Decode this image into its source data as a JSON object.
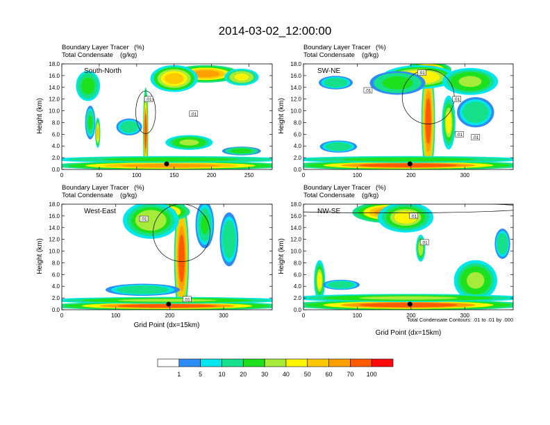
{
  "figure": {
    "title": "2014-03-02_12:00:00",
    "contour_note": "Total Condensate Contours: .01 to .01 by .000"
  },
  "colorbar": {
    "colors": [
      "#ffffff",
      "#2f8cf4",
      "#00e6ee",
      "#17e08b",
      "#1ee11e",
      "#a6ea3a",
      "#fff400",
      "#ffc800",
      "#ffa000",
      "#ff5a00",
      "#ff0a0a"
    ],
    "ticks": [
      "1",
      "5",
      "10",
      "20",
      "30",
      "40",
      "50",
      "60",
      "70",
      "100"
    ]
  },
  "chart_data": [
    {
      "type": "heatmap",
      "direction": "South-North",
      "subtitle_left": [
        "Boundary Layer Tracer",
        "Total Condensate"
      ],
      "subtitle_units": [
        "(%)",
        "(g/kg)"
      ],
      "ylabel": "Height (km)",
      "xlabel": "",
      "xlim": [
        0,
        281
      ],
      "ylim": [
        0,
        18
      ],
      "xticks": [
        0,
        50,
        100,
        150,
        200,
        250
      ],
      "yticks": [
        "0.0",
        "2.0",
        "4.0",
        "6.0",
        "8.0",
        "10.0",
        "12.0",
        "14.0",
        "16.0",
        "18.0"
      ],
      "marker_x": 140,
      "contour_labels": [
        {
          "x": 116,
          "y": 12.0,
          "text": ".01"
        },
        {
          "x": 176,
          "y": 9.5,
          "text": ".01"
        }
      ],
      "plumes": [
        {
          "x": 112,
          "y": 0,
          "w": 6,
          "h": 13,
          "v": 72
        },
        {
          "x": 192,
          "y": 15.0,
          "w": 80,
          "h": 2.6,
          "v": 66
        },
        {
          "x": 150,
          "y": 13.5,
          "w": 55,
          "h": 4.0,
          "v": 55
        },
        {
          "x": 240,
          "y": 14.5,
          "w": 40,
          "h": 2.5,
          "v": 45
        },
        {
          "x": 35,
          "y": 12.0,
          "w": 28,
          "h": 4.5,
          "v": 28
        },
        {
          "x": 48,
          "y": 4.0,
          "w": 6,
          "h": 4.5,
          "v": 55
        },
        {
          "x": 38,
          "y": 5.5,
          "w": 12,
          "h": 5.0,
          "v": 22
        },
        {
          "x": 90,
          "y": 6.0,
          "w": 30,
          "h": 2.5,
          "v": 18
        },
        {
          "x": 170,
          "y": 3.5,
          "w": 55,
          "h": 2.2,
          "v": 30
        },
        {
          "x": 240,
          "y": 2.5,
          "w": 45,
          "h": 1.3,
          "v": 25
        },
        {
          "x": 145,
          "y": 0.0,
          "w": 280,
          "h": 1.3,
          "v": 68
        },
        {
          "x": 145,
          "y": 1.2,
          "w": 280,
          "h": 1.0,
          "v": 28
        }
      ]
    },
    {
      "type": "heatmap",
      "direction": "SW-NE",
      "subtitle_left": [
        "Boundary Layer Tracer",
        "Total Condensate"
      ],
      "subtitle_units": [
        "(%)",
        "(g/kg)"
      ],
      "ylabel": "Height (km)",
      "xlabel": "",
      "xlim": [
        0,
        390
      ],
      "ylim": [
        0,
        18
      ],
      "xticks": [
        0,
        100,
        200,
        300
      ],
      "yticks": [
        "0.0",
        "2.0",
        "4.0",
        "6.0",
        "8.0",
        "10.0",
        "12.0",
        "14.0",
        "16.0",
        "18.0"
      ],
      "marker_x": 198,
      "contour_labels": [
        {
          "x": 285,
          "y": 12.0,
          "text": ".01"
        },
        {
          "x": 290,
          "y": 6.0,
          "text": ".01"
        },
        {
          "x": 320,
          "y": 5.5,
          "text": ".01"
        },
        {
          "x": 220,
          "y": 16.5,
          "text": ".01"
        },
        {
          "x": 120,
          "y": 13.5,
          "text": ".01"
        }
      ],
      "plumes": [
        {
          "x": 232,
          "y": 0,
          "w": 22,
          "h": 16.5,
          "v": 78
        },
        {
          "x": 232,
          "y": 15.8,
          "w": 75,
          "h": 2.4,
          "v": 72
        },
        {
          "x": 215,
          "y": 14.0,
          "w": 120,
          "h": 3.5,
          "v": 48
        },
        {
          "x": 310,
          "y": 13.0,
          "w": 90,
          "h": 4.0,
          "v": 34
        },
        {
          "x": 175,
          "y": 13.0,
          "w": 90,
          "h": 3.5,
          "v": 25
        },
        {
          "x": 60,
          "y": 13.8,
          "w": 55,
          "h": 2.0,
          "v": 16
        },
        {
          "x": 320,
          "y": 7.5,
          "w": 60,
          "h": 4.5,
          "v": 16
        },
        {
          "x": 270,
          "y": 4.0,
          "w": 22,
          "h": 8.0,
          "v": 40
        },
        {
          "x": 65,
          "y": 3.0,
          "w": 60,
          "h": 1.8,
          "v": 16
        },
        {
          "x": 195,
          "y": 0.0,
          "w": 390,
          "h": 1.4,
          "v": 70
        },
        {
          "x": 195,
          "y": 1.2,
          "w": 390,
          "h": 1.0,
          "v": 28
        }
      ]
    },
    {
      "type": "heatmap",
      "direction": "West-East",
      "subtitle_left": [
        "Boundary Layer Tracer",
        "Total Condensate"
      ],
      "subtitle_units": [
        "(%)",
        "(g/kg)"
      ],
      "ylabel": "Height (km)",
      "xlabel": "Grid Point (dx=15km)",
      "xlim": [
        0,
        390
      ],
      "ylim": [
        0,
        18
      ],
      "xticks": [
        0,
        100,
        200,
        300
      ],
      "yticks": [
        "0.0",
        "2.0",
        "4.0",
        "6.0",
        "8.0",
        "10.0",
        "12.0",
        "14.0",
        "16.0",
        "18.0"
      ],
      "marker_x": 198,
      "contour_labels": [
        {
          "x": 152,
          "y": 15.5,
          "text": ".01"
        },
        {
          "x": 232,
          "y": 1.8,
          "text": ".01"
        }
      ],
      "plumes": [
        {
          "x": 222,
          "y": 0,
          "w": 24,
          "h": 17.5,
          "v": 80
        },
        {
          "x": 180,
          "y": 15.2,
          "w": 100,
          "h": 3.0,
          "v": 62
        },
        {
          "x": 165,
          "y": 12.5,
          "w": 90,
          "h": 5.5,
          "v": 38
        },
        {
          "x": 265,
          "y": 11.0,
          "w": 30,
          "h": 7.0,
          "v": 22
        },
        {
          "x": 310,
          "y": 8.0,
          "w": 30,
          "h": 8.0,
          "v": 18
        },
        {
          "x": 150,
          "y": 2.5,
          "w": 120,
          "h": 1.8,
          "v": 16
        },
        {
          "x": 195,
          "y": 0.0,
          "w": 390,
          "h": 1.3,
          "v": 70
        },
        {
          "x": 195,
          "y": 1.1,
          "w": 390,
          "h": 1.0,
          "v": 30
        }
      ]
    },
    {
      "type": "heatmap",
      "direction": "NW-SE",
      "subtitle_left": [
        "Boundary Layer Tracer",
        "Total Condensate"
      ],
      "subtitle_units": [
        "(%)",
        "(g/kg)"
      ],
      "ylabel": "Height (km)",
      "xlabel": "Grid Point (dx=15km)",
      "xlim": [
        0,
        390
      ],
      "ylim": [
        0,
        18
      ],
      "xticks": [
        0,
        100,
        200,
        300
      ],
      "yticks": [
        "0.0",
        "2.0",
        "4.0",
        "6.0",
        "8.0",
        "10.0",
        "12.0",
        "14.0",
        "16.0",
        "18.0"
      ],
      "marker_x": 198,
      "contour_labels": [
        {
          "x": 205,
          "y": 16.0,
          "text": ".01"
        },
        {
          "x": 225,
          "y": 11.5,
          "text": ".01"
        }
      ],
      "plumes": [
        {
          "x": 160,
          "y": 15.0,
          "w": 120,
          "h": 3.2,
          "v": 68
        },
        {
          "x": 190,
          "y": 13.5,
          "w": 90,
          "h": 4.5,
          "v": 42
        },
        {
          "x": 218,
          "y": 8.5,
          "w": 15,
          "h": 4.0,
          "v": 35
        },
        {
          "x": 30,
          "y": 2.0,
          "w": 18,
          "h": 6.0,
          "v": 40
        },
        {
          "x": 70,
          "y": 3.5,
          "w": 60,
          "h": 1.5,
          "v": 16
        },
        {
          "x": 320,
          "y": 2.0,
          "w": 70,
          "h": 6.0,
          "v": 30
        },
        {
          "x": 370,
          "y": 9.0,
          "w": 25,
          "h": 4.5,
          "v": 16
        },
        {
          "x": 195,
          "y": 0.0,
          "w": 390,
          "h": 1.6,
          "v": 72
        },
        {
          "x": 195,
          "y": 1.4,
          "w": 390,
          "h": 1.2,
          "v": 32
        }
      ]
    }
  ]
}
